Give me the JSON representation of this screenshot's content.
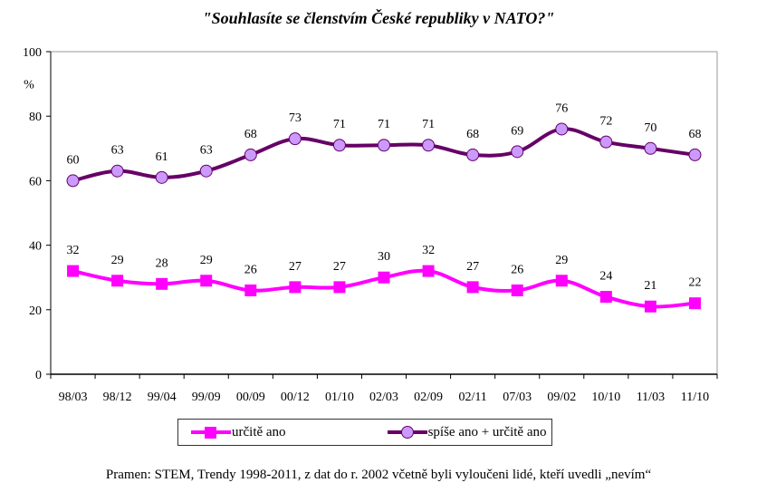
{
  "chart_data": {
    "type": "line",
    "title": "\"Souhlasíte se členstvím České republiky v NATO?\"",
    "xlabel": "",
    "ylabel": "%",
    "ylim": [
      0,
      100
    ],
    "yticks": [
      0,
      20,
      40,
      60,
      80,
      100
    ],
    "grid": false,
    "legend_position": "bottom",
    "categories": [
      "98/03",
      "98/12",
      "99/04",
      "99/09",
      "00/09",
      "00/12",
      "01/10",
      "02/03",
      "02/09",
      "02/11",
      "07/03",
      "09/02",
      "10/10",
      "11/03",
      "11/10"
    ],
    "series": [
      {
        "name": "určitě ano",
        "color": "#ff00ff",
        "marker": "square",
        "values": [
          32,
          29,
          28,
          29,
          26,
          27,
          27,
          30,
          32,
          27,
          26,
          29,
          24,
          21,
          22
        ]
      },
      {
        "name": "spíše ano + určitě ano",
        "color": "#660066",
        "marker_fill": "#cc99ff",
        "marker": "circle",
        "values": [
          60,
          63,
          61,
          63,
          68,
          73,
          71,
          71,
          71,
          68,
          69,
          76,
          72,
          70,
          68
        ]
      }
    ],
    "source": "Pramen: STEM, Trendy 1998-2011, z dat do r. 2002 včetně byli vyloučeni lidé, kteří uvedli „nevím“"
  }
}
